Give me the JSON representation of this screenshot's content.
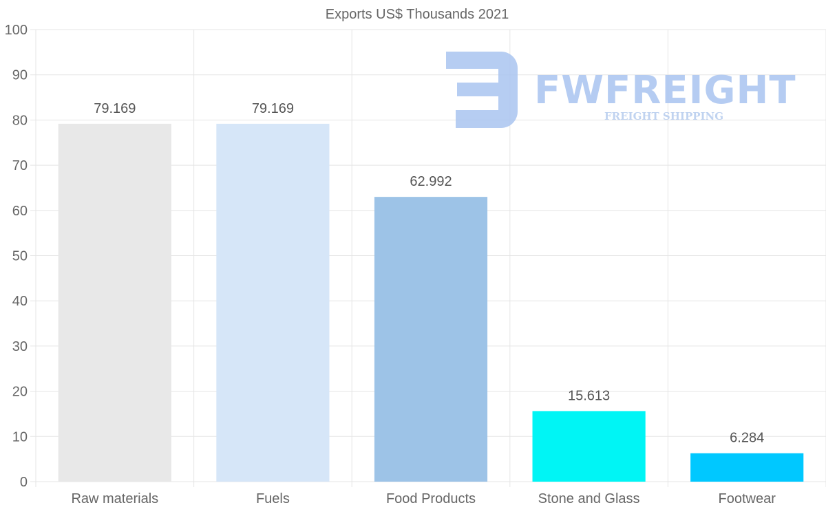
{
  "chart_data": {
    "type": "bar",
    "title": "Exports US$ Thousands 2021",
    "categories": [
      "Raw materials",
      "Fuels",
      "Food Products",
      "Stone and Glass",
      "Footwear"
    ],
    "values": [
      79.169,
      79.169,
      62.992,
      15.613,
      6.284
    ],
    "value_labels": [
      "79.169",
      "79.169",
      "62.992",
      "15.613",
      "6.284"
    ],
    "colors": [
      "#e8e8e8",
      "#d6e6f8",
      "#9dc3e7",
      "#00f5f5",
      "#00c8ff"
    ],
    "ylim": [
      0,
      100
    ],
    "yticks": [
      0,
      10,
      20,
      30,
      40,
      50,
      60,
      70,
      80,
      90,
      100
    ],
    "xlabel": "",
    "ylabel": "",
    "grid": true
  },
  "watermark": {
    "name": "FWFREIGHT",
    "tagline": "FREIGHT SHIPPING",
    "color": "#a9c4f0"
  }
}
